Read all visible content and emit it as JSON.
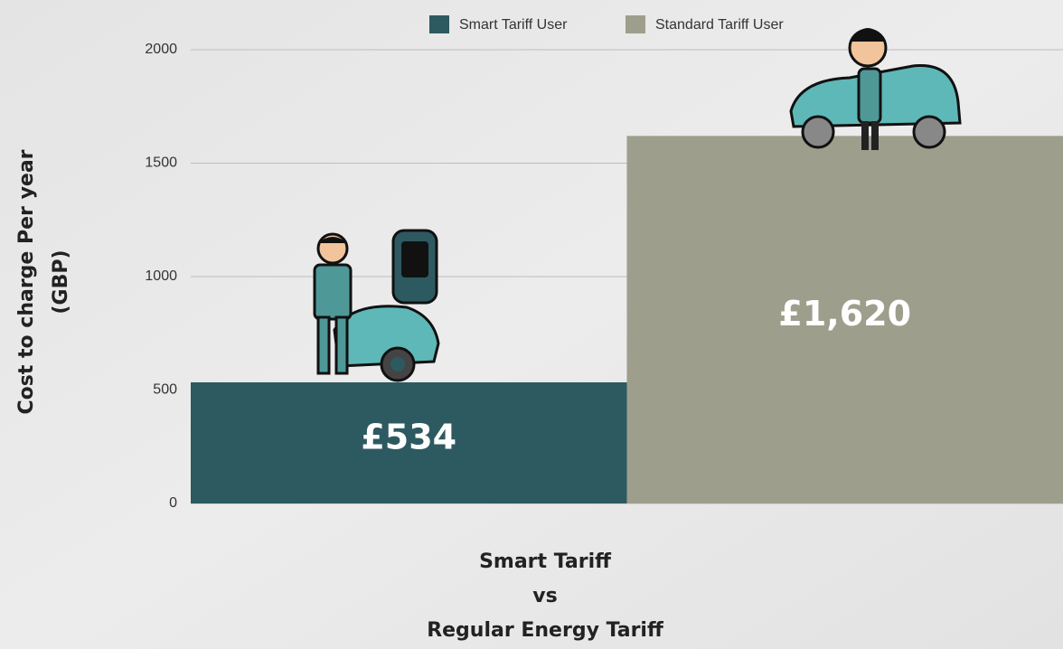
{
  "chart_data": {
    "type": "bar",
    "categories": [
      null
    ],
    "series": [
      {
        "name": "Smart Tariff User",
        "color": "#2d5a60",
        "values": [
          534
        ],
        "value_labels": [
          "£534"
        ]
      },
      {
        "name": "Standard Tariff User",
        "color": "#9e9e8c",
        "values": [
          1620
        ],
        "value_labels": [
          "£1,620"
        ]
      }
    ],
    "ylabel": [
      "Cost to charge Per year",
      "(GBP)"
    ],
    "xlabel": [
      "Smart Tariff",
      "vs",
      "Regular Energy Tariff"
    ],
    "ylim": [
      0,
      2000
    ],
    "yticks": [
      0,
      500,
      1000,
      1500,
      2000
    ],
    "grid": true,
    "legend": "top"
  }
}
